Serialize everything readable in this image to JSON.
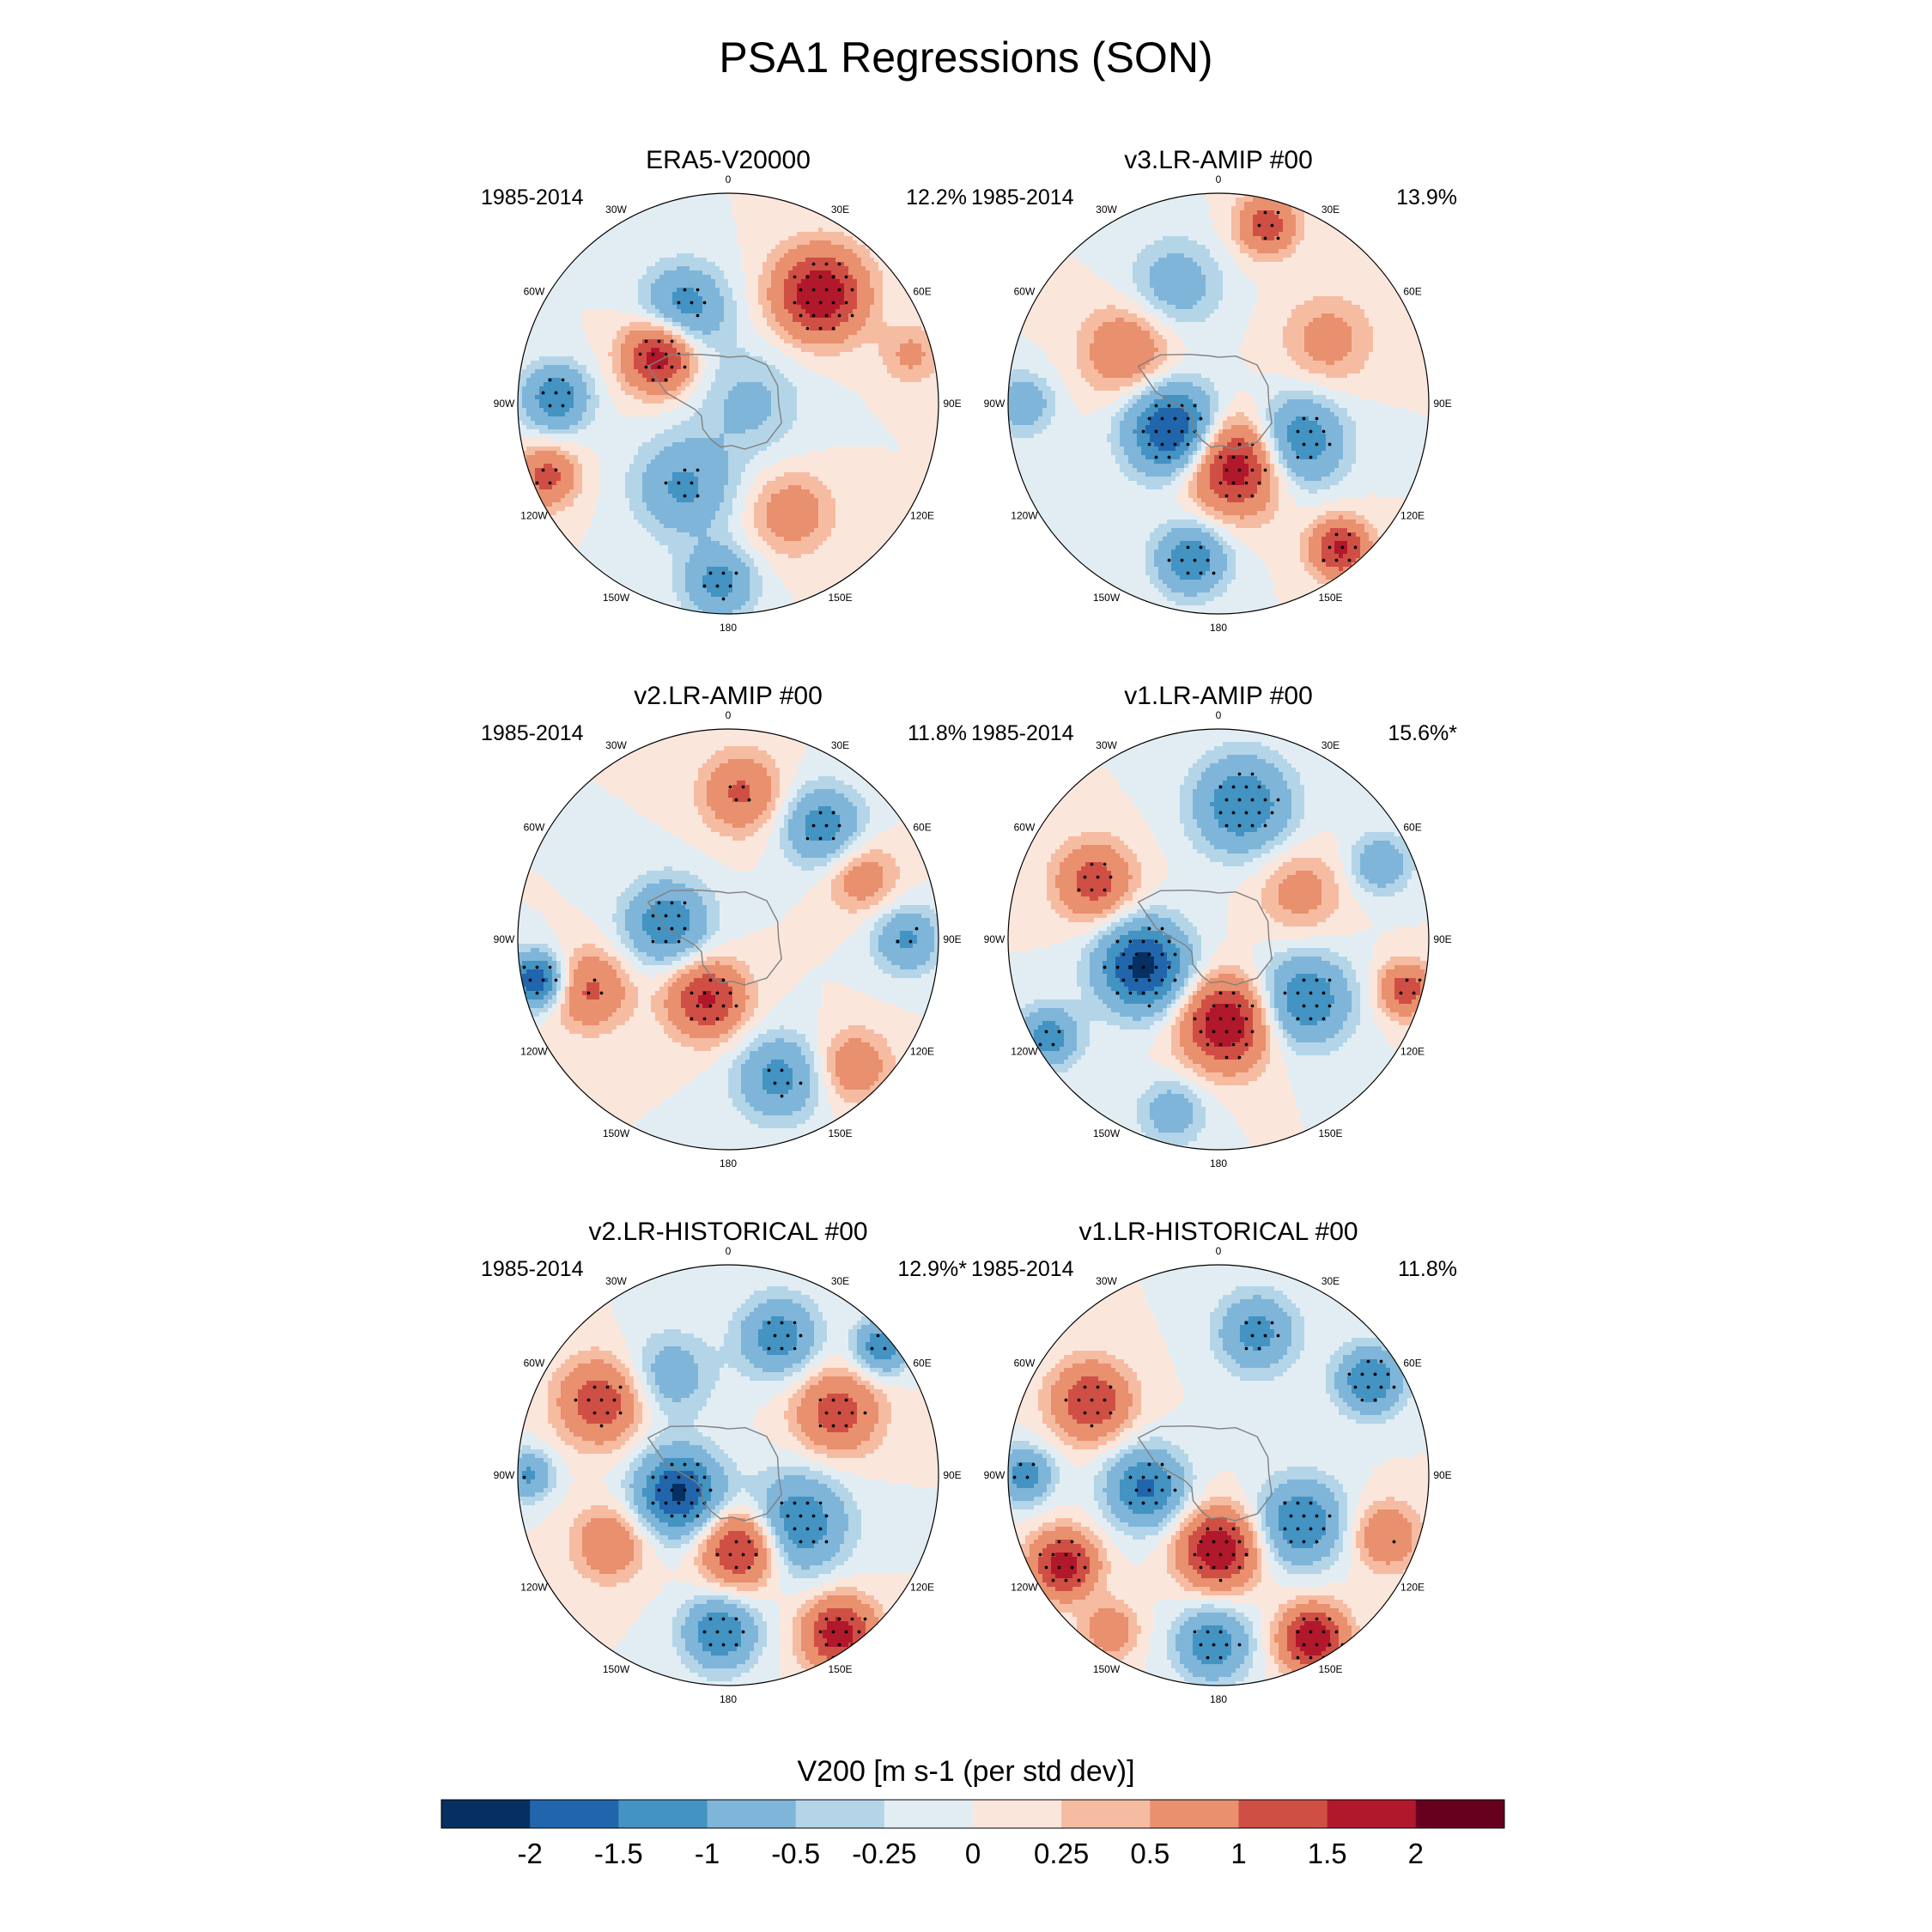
{
  "chart_data": {
    "type": "heatmap",
    "projection": "south polar stereographic",
    "title": "PSA1 Regressions (SON)",
    "colorbar": {
      "label": "V200 [m s-1 (per std dev)]",
      "levels": [
        "-2",
        "-1.5",
        "-1",
        "-0.5",
        "-0.25",
        "0",
        "0.25",
        "0.5",
        "1",
        "1.5",
        "2"
      ],
      "colors": [
        "#053061",
        "#2166ac",
        "#4393c3",
        "#7fb5d8",
        "#b4d5e8",
        "#e2edf3",
        "#fbe6dc",
        "#f6bca2",
        "#e9906e",
        "#d04f45",
        "#b2182b",
        "#67001f"
      ]
    },
    "lon_labels": [
      "0",
      "30E",
      "60E",
      "90E",
      "120E",
      "150E",
      "180",
      "150W",
      "120W",
      "90W",
      "60W",
      "30W"
    ],
    "panels": [
      {
        "title": "ERA5-V20000",
        "period": "1985-2014",
        "pct": "12.2%",
        "blobs": [
          {
            "lon": 40,
            "r": 0.68,
            "v": 2.0,
            "s": 0.15
          },
          {
            "lon": 335,
            "r": 0.5,
            "v": -1.3,
            "s": 0.14
          },
          {
            "lon": 305,
            "r": 0.4,
            "v": 1.9,
            "s": 0.12
          },
          {
            "lon": 272,
            "r": 0.82,
            "v": -1.4,
            "s": 0.11
          },
          {
            "lon": 248,
            "r": 0.93,
            "v": 1.2,
            "s": 0.1
          },
          {
            "lon": 208,
            "r": 0.45,
            "v": -1.1,
            "s": 0.16
          },
          {
            "lon": 183,
            "r": 0.85,
            "v": -1.2,
            "s": 0.12
          },
          {
            "lon": 150,
            "r": 0.6,
            "v": 0.8,
            "s": 0.14
          },
          {
            "lon": 90,
            "r": 0.1,
            "v": -0.6,
            "s": 0.18
          },
          {
            "lon": 75,
            "r": 0.9,
            "v": 0.6,
            "s": 0.1
          }
        ]
      },
      {
        "title": "v3.LR-AMIP  #00",
        "period": "1985-2014",
        "pct": "13.9%",
        "blobs": [
          {
            "lon": 240,
            "r": 0.25,
            "v": -2.2,
            "s": 0.15
          },
          {
            "lon": 165,
            "r": 0.3,
            "v": 2.0,
            "s": 0.16
          },
          {
            "lon": 115,
            "r": 0.42,
            "v": -1.5,
            "s": 0.15
          },
          {
            "lon": 190,
            "r": 0.75,
            "v": -1.4,
            "s": 0.12
          },
          {
            "lon": 140,
            "r": 0.9,
            "v": 1.6,
            "s": 0.1
          },
          {
            "lon": 15,
            "r": 0.88,
            "v": 1.3,
            "s": 0.1
          },
          {
            "lon": 300,
            "r": 0.5,
            "v": 1.0,
            "s": 0.15
          },
          {
            "lon": 340,
            "r": 0.6,
            "v": -0.8,
            "s": 0.15
          },
          {
            "lon": 60,
            "r": 0.6,
            "v": 0.7,
            "s": 0.15
          },
          {
            "lon": 270,
            "r": 0.93,
            "v": -0.9,
            "s": 0.1
          }
        ]
      },
      {
        "title": "v2.LR-AMIP  #00",
        "period": "1985-2014",
        "pct": "11.8%",
        "blobs": [
          {
            "lon": 285,
            "r": 0.3,
            "v": -1.4,
            "s": 0.14
          },
          {
            "lon": 200,
            "r": 0.3,
            "v": 1.6,
            "s": 0.13
          },
          {
            "lon": 258,
            "r": 0.93,
            "v": -2.0,
            "s": 0.09
          },
          {
            "lon": 250,
            "r": 0.7,
            "v": 1.1,
            "s": 0.13
          },
          {
            "lon": 160,
            "r": 0.7,
            "v": -1.2,
            "s": 0.14
          },
          {
            "lon": 135,
            "r": 0.85,
            "v": 0.9,
            "s": 0.12
          },
          {
            "lon": 40,
            "r": 0.7,
            "v": -1.3,
            "s": 0.13
          },
          {
            "lon": 5,
            "r": 0.7,
            "v": 1.1,
            "s": 0.13
          },
          {
            "lon": 90,
            "r": 0.85,
            "v": -1.1,
            "s": 0.11
          },
          {
            "lon": 65,
            "r": 0.7,
            "v": 0.8,
            "s": 0.12
          }
        ]
      },
      {
        "title": "v1.LR-AMIP  #00",
        "period": "1985-2014",
        "pct": "15.6%*",
        "blobs": [
          {
            "lon": 250,
            "r": 0.38,
            "v": -2.2,
            "s": 0.15
          },
          {
            "lon": 175,
            "r": 0.4,
            "v": 2.0,
            "s": 0.15
          },
          {
            "lon": 125,
            "r": 0.5,
            "v": -1.5,
            "s": 0.15
          },
          {
            "lon": 10,
            "r": 0.65,
            "v": -1.5,
            "s": 0.16
          },
          {
            "lon": 295,
            "r": 0.65,
            "v": 1.3,
            "s": 0.13
          },
          {
            "lon": 240,
            "r": 0.93,
            "v": -1.3,
            "s": 0.1
          },
          {
            "lon": 105,
            "r": 0.92,
            "v": 1.3,
            "s": 0.09
          },
          {
            "lon": 195,
            "r": 0.85,
            "v": -0.8,
            "s": 0.11
          },
          {
            "lon": 65,
            "r": 0.85,
            "v": -0.9,
            "s": 0.1
          },
          {
            "lon": 60,
            "r": 0.45,
            "v": 0.7,
            "s": 0.14
          }
        ]
      },
      {
        "title": "v2.LR-HISTORICAL  #00",
        "period": "1985-2014",
        "pct": "12.9%*",
        "blobs": [
          {
            "lon": 250,
            "r": 0.25,
            "v": -2.1,
            "s": 0.14
          },
          {
            "lon": 170,
            "r": 0.35,
            "v": 1.8,
            "s": 0.13
          },
          {
            "lon": 125,
            "r": 0.4,
            "v": -1.5,
            "s": 0.16
          },
          {
            "lon": 145,
            "r": 0.92,
            "v": 1.8,
            "s": 0.12
          },
          {
            "lon": 183,
            "r": 0.75,
            "v": -1.5,
            "s": 0.12
          },
          {
            "lon": 300,
            "r": 0.7,
            "v": 1.4,
            "s": 0.14
          },
          {
            "lon": 60,
            "r": 0.6,
            "v": 1.3,
            "s": 0.14
          },
          {
            "lon": 20,
            "r": 0.7,
            "v": -1.3,
            "s": 0.13
          },
          {
            "lon": 50,
            "r": 0.95,
            "v": -1.4,
            "s": 0.09
          },
          {
            "lon": 240,
            "r": 0.65,
            "v": 1.0,
            "s": 0.12
          },
          {
            "lon": 270,
            "r": 0.95,
            "v": -1.1,
            "s": 0.08
          },
          {
            "lon": 330,
            "r": 0.55,
            "v": -0.8,
            "s": 0.14
          }
        ]
      },
      {
        "title": "v1.LR-HISTORICAL  #00",
        "period": "1985-2014",
        "pct": "11.8%",
        "blobs": [
          {
            "lon": 260,
            "r": 0.35,
            "v": -1.6,
            "s": 0.13
          },
          {
            "lon": 180,
            "r": 0.35,
            "v": 2.0,
            "s": 0.13
          },
          {
            "lon": 120,
            "r": 0.45,
            "v": -1.5,
            "s": 0.14
          },
          {
            "lon": 150,
            "r": 0.9,
            "v": 2.0,
            "s": 0.11
          },
          {
            "lon": 182,
            "r": 0.8,
            "v": -1.4,
            "s": 0.12
          },
          {
            "lon": 240,
            "r": 0.85,
            "v": 1.8,
            "s": 0.11
          },
          {
            "lon": 300,
            "r": 0.7,
            "v": 1.5,
            "s": 0.13
          },
          {
            "lon": 15,
            "r": 0.7,
            "v": -1.2,
            "s": 0.13
          },
          {
            "lon": 58,
            "r": 0.85,
            "v": -1.5,
            "s": 0.11
          },
          {
            "lon": 110,
            "r": 0.85,
            "v": 1.0,
            "s": 0.11
          },
          {
            "lon": 270,
            "r": 0.92,
            "v": -1.3,
            "s": 0.09
          },
          {
            "lon": 215,
            "r": 0.9,
            "v": 0.9,
            "s": 0.09
          }
        ]
      }
    ]
  }
}
